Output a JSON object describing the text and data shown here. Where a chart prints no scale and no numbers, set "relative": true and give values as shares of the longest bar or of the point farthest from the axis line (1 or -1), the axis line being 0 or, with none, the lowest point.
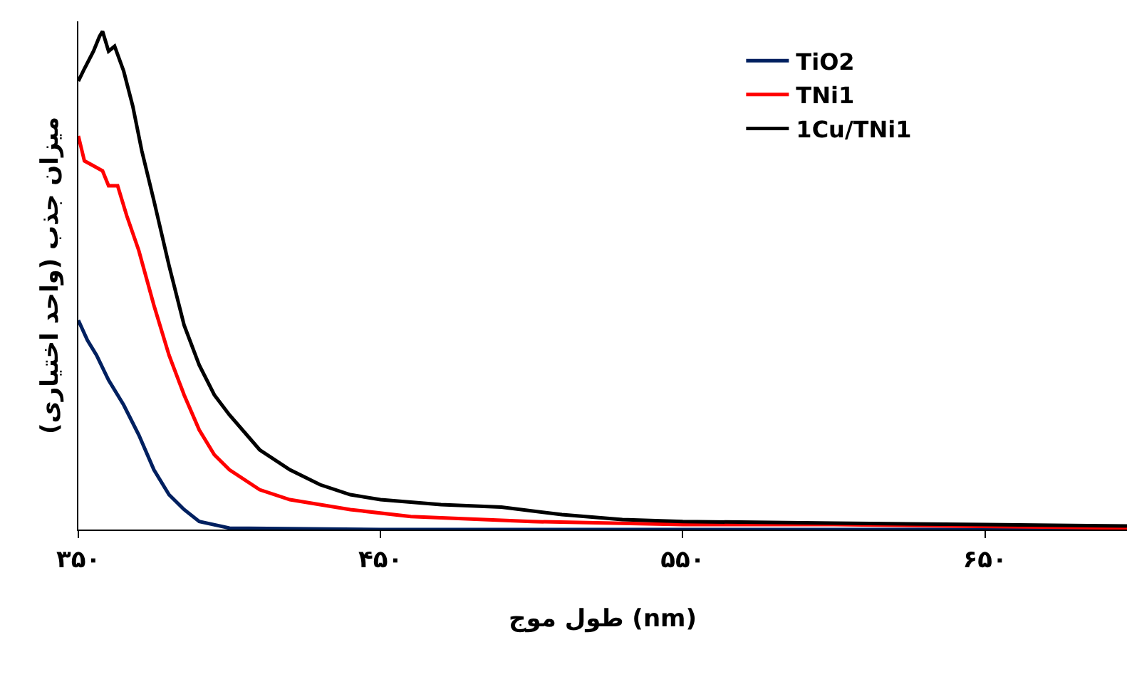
{
  "chart_data": {
    "type": "line",
    "relative": true,
    "xlabel": "طول موج (nm)",
    "ylabel": "میزان جذب (واحد اختیاری)",
    "xlim": [
      350,
      697
    ],
    "xticks": [
      {
        "value": 350,
        "label": "۳۵۰"
      },
      {
        "value": 450,
        "label": "۴۵۰"
      },
      {
        "value": 550,
        "label": "۵۵۰"
      },
      {
        "value": 650,
        "label": "۶۵۰"
      }
    ],
    "grid": false,
    "legend": "top right",
    "marker": "none",
    "line_style": "solid",
    "series": [
      {
        "name": "TiO2",
        "color": "#002060",
        "x": [
          350,
          353,
          356,
          360,
          365,
          370,
          375,
          380,
          385,
          390,
          400,
          450,
          550,
          697
        ],
        "values": [
          0.42,
          0.38,
          0.35,
          0.3,
          0.25,
          0.19,
          0.12,
          0.07,
          0.04,
          0.016,
          0.003,
          0,
          0,
          0
        ]
      },
      {
        "name": "TNi1",
        "color": "#ff0000",
        "x": [
          350,
          352,
          355,
          358,
          360,
          363,
          366,
          370,
          375,
          380,
          385,
          390,
          395,
          400,
          410,
          420,
          440,
          460,
          500,
          550,
          600,
          697
        ],
        "values": [
          0.79,
          0.74,
          0.73,
          0.72,
          0.69,
          0.69,
          0.63,
          0.56,
          0.45,
          0.35,
          0.27,
          0.2,
          0.15,
          0.12,
          0.08,
          0.06,
          0.04,
          0.026,
          0.016,
          0.01,
          0.01,
          0.003
        ]
      },
      {
        "name": "1Cu/TNi1",
        "color": "#000000",
        "x": [
          350,
          352,
          355,
          357,
          358,
          360,
          362,
          365,
          368,
          371,
          375,
          380,
          385,
          390,
          395,
          400,
          410,
          420,
          430,
          440,
          450,
          470,
          490,
          510,
          530,
          550,
          600,
          650,
          697
        ],
        "values": [
          0.9,
          0.925,
          0.96,
          0.99,
          1.0,
          0.96,
          0.97,
          0.92,
          0.85,
          0.76,
          0.66,
          0.53,
          0.41,
          0.33,
          0.27,
          0.23,
          0.16,
          0.12,
          0.09,
          0.07,
          0.06,
          0.05,
          0.045,
          0.03,
          0.02,
          0.016,
          0.013,
          0.01,
          0.007
        ]
      }
    ]
  }
}
